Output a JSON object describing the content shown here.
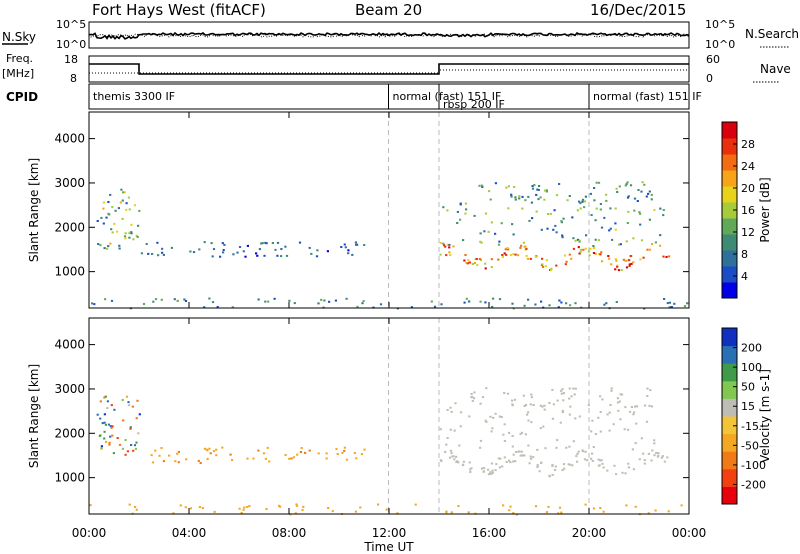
{
  "header": {
    "station": "Fort Hays West (fitACF)",
    "beam": "Beam 20",
    "date": "16/Dec/2015"
  },
  "noise_panel": {
    "left_label": "N.Sky",
    "right_label": "N.Search",
    "left_ticks": [
      "10^5",
      "10^0"
    ],
    "right_ticks": [
      "10^5",
      "10^0"
    ]
  },
  "freq_panel": {
    "left_label_1": "Freq.",
    "left_label_2": "[MHz]",
    "right_label": "Nave",
    "left_ticks": [
      "18",
      "8"
    ],
    "right_ticks": [
      "60",
      "0"
    ]
  },
  "cpid_panel": {
    "label": "CPID",
    "modes": [
      {
        "name": "themis 3300 IF",
        "start_hour": 0,
        "end_hour": 11.98
      },
      {
        "name": "normal (fast) 151 IF",
        "start_hour": 11.98,
        "end_hour": 14.0
      },
      {
        "name": "rbsp 200 IF",
        "start_hour": 14.0,
        "end_hour": 20.0
      },
      {
        "name": "normal (fast) 151 IF",
        "start_hour": 20.0,
        "end_hour": 24.0
      }
    ]
  },
  "chart_data": [
    {
      "type": "heatmap",
      "title": "",
      "xlabel": "Time UT",
      "ylabel": "Slant Range [km]",
      "colorbar_label": "Power [dB]",
      "xlim_hours": [
        0,
        24
      ],
      "ylim": [
        180,
        4600
      ],
      "x_ticks": [
        "00:00",
        "04:00",
        "08:00",
        "12:00",
        "16:00",
        "20:00",
        "00:00"
      ],
      "y_ticks": [
        1000,
        2000,
        3000,
        4000
      ],
      "colorbar_ticks": [
        "28",
        "24",
        "20",
        "16",
        "12",
        "8",
        "4"
      ],
      "colorbar_range": [
        0,
        32
      ],
      "colorbar_colors": [
        "#0000e6",
        "#1b4cc8",
        "#2f6f9a",
        "#3f8a73",
        "#62a85a",
        "#a6cc3a",
        "#e8d21c",
        "#f7a418",
        "#f36b12",
        "#e8300e",
        "#d8000c"
      ],
      "scatter_regions": [
        {
          "t0": 0.3,
          "t1": 2.0,
          "r0": 1500,
          "r1": 2900,
          "value_min": 4,
          "value_max": 22
        },
        {
          "t0": 2.0,
          "t1": 11.0,
          "r0": 1350,
          "r1": 1700,
          "value_min": 2,
          "value_max": 12
        },
        {
          "t0": 14.0,
          "t1": 23.2,
          "r0": 1050,
          "r1": 1750,
          "value_min": 16,
          "value_max": 32
        },
        {
          "t0": 14.0,
          "t1": 23.0,
          "r0": 1600,
          "r1": 2700,
          "value_min": 4,
          "value_max": 18
        },
        {
          "t0": 15.0,
          "t1": 22.5,
          "r0": 2600,
          "r1": 3050,
          "value_min": 4,
          "value_max": 16
        },
        {
          "t0": 0.0,
          "t1": 24.0,
          "r0": 190,
          "r1": 420,
          "value_min": 4,
          "value_max": 14
        }
      ]
    },
    {
      "type": "heatmap",
      "title": "",
      "xlabel": "Time UT",
      "ylabel": "Slant Range [km]",
      "colorbar_label": "Velocity [m s-1]",
      "xlim_hours": [
        0,
        24
      ],
      "ylim": [
        180,
        4600
      ],
      "x_ticks": [
        "00:00",
        "04:00",
        "08:00",
        "12:00",
        "16:00",
        "20:00",
        "00:00"
      ],
      "y_ticks": [
        1000,
        2000,
        3000,
        4000
      ],
      "colorbar_ticks": [
        "200",
        "100",
        "50",
        "15",
        "-15",
        "-50",
        "-100",
        "-200"
      ],
      "colorbar_colors": [
        "#e8000c",
        "#f24010",
        "#f07a16",
        "#f4a722",
        "#f2c43a",
        "#bdbdb5",
        "#80c850",
        "#3f9a4a",
        "#2a6fb5",
        "#1030c0"
      ],
      "ground_scatter_color": "#bebeb4",
      "scatter_regions": [
        {
          "t0": 0.3,
          "t1": 2.0,
          "r0": 1500,
          "r1": 2900,
          "value_min": -120,
          "value_max": 220
        },
        {
          "t0": 2.0,
          "t1": 11.0,
          "r0": 1350,
          "r1": 1700,
          "value_min": -60,
          "value_max": -20
        },
        {
          "t0": 14.0,
          "t1": 23.2,
          "r0": 1050,
          "r1": 1750,
          "value_min": -10,
          "value_max": 10
        },
        {
          "t0": 14.0,
          "t1": 23.0,
          "r0": 1600,
          "r1": 2700,
          "value_min": -10,
          "value_max": 10
        },
        {
          "t0": 15.0,
          "t1": 22.5,
          "r0": 2600,
          "r1": 3050,
          "value_min": -10,
          "value_max": 10
        },
        {
          "t0": 0.0,
          "t1": 24.0,
          "r0": 190,
          "r1": 420,
          "value_min": -50,
          "value_max": -20
        }
      ]
    }
  ]
}
